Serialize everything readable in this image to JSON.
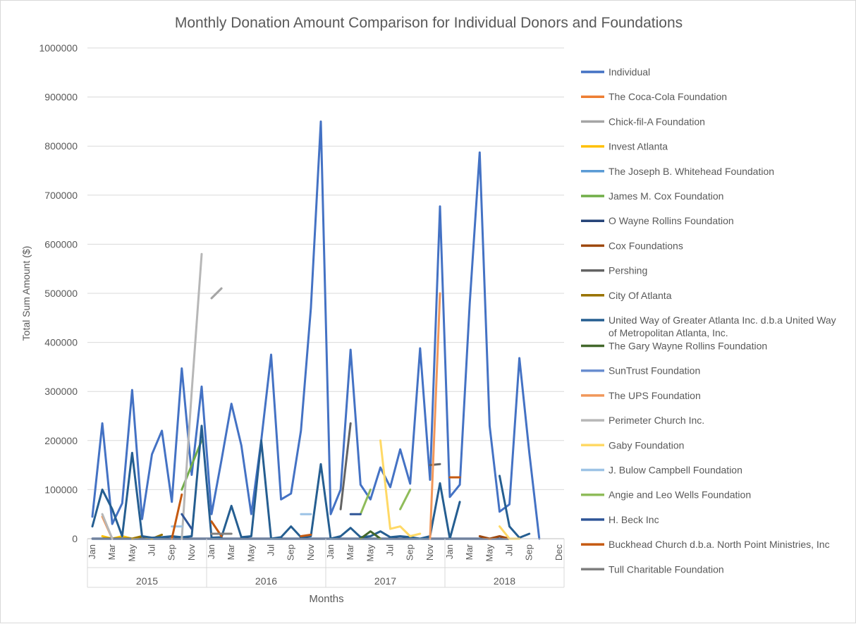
{
  "chart_data": {
    "type": "line",
    "title": "Monthly Donation Amount Comparison for Individual Donors and Foundations",
    "xlabel": "Months",
    "ylabel": "Total Sum Amount ($)",
    "ylim": [
      0,
      1000000
    ],
    "y_ticks": [
      "0",
      "100000",
      "200000",
      "300000",
      "400000",
      "500000",
      "600000",
      "700000",
      "800000",
      "900000",
      "1000000"
    ],
    "years": [
      "2015",
      "2016",
      "2017",
      "2018"
    ],
    "month_labels": [
      "Jan",
      "Mar",
      "May",
      "Jul",
      "Sep",
      "Nov",
      "Jan",
      "Mar",
      "May",
      "Jul",
      "Sep",
      "Nov",
      "Jan",
      "Mar",
      "May",
      "Jul",
      "Sep",
      "Nov",
      "Jan",
      "Mar",
      "May",
      "Jul",
      "Sep",
      "Dec"
    ],
    "legend_position": "right",
    "grid": true,
    "series": [
      {
        "name": "Individual",
        "color": "#4472C4",
        "values": [
          45000,
          235000,
          30000,
          72000,
          303000,
          40000,
          172000,
          220000,
          75000,
          347000,
          130000,
          310000,
          50000,
          160000,
          275000,
          190000,
          50000,
          200000,
          375000,
          80000,
          92000,
          220000,
          470000,
          850000,
          50000,
          100000,
          385000,
          110000,
          80000,
          145000,
          105000,
          182000,
          112000,
          388000,
          120000,
          677000,
          85000,
          110000,
          480000,
          787000,
          230000,
          55000,
          70000,
          368000,
          175000,
          0,
          null,
          null
        ]
      },
      {
        "name": "The Coca-Cola Foundation",
        "color": "#ED7D31",
        "values": [
          null,
          null,
          null,
          null,
          null,
          null,
          null,
          null,
          null,
          null,
          null,
          null,
          null,
          null,
          null,
          null,
          null,
          null,
          null,
          null,
          null,
          null,
          null,
          null,
          null,
          null,
          null,
          null,
          null,
          null,
          null,
          null,
          null,
          null,
          null,
          null,
          null,
          null,
          null,
          null,
          null,
          null,
          null,
          null,
          null,
          null,
          null,
          null
        ]
      },
      {
        "name": "Chick-fil-A Foundation",
        "color": "#A5A5A5",
        "values": [
          null,
          null,
          null,
          null,
          null,
          null,
          null,
          null,
          null,
          null,
          null,
          null,
          490000,
          510000,
          null,
          null,
          null,
          null,
          null,
          null,
          null,
          null,
          null,
          null,
          null,
          null,
          null,
          null,
          null,
          null,
          null,
          null,
          null,
          null,
          null,
          null,
          null,
          null,
          null,
          null,
          null,
          null,
          null,
          null,
          null,
          null,
          null,
          null
        ]
      },
      {
        "name": "Invest Atlanta",
        "color": "#FFC000",
        "values": [
          null,
          5000,
          0,
          5000,
          0,
          5000,
          null,
          null,
          null,
          null,
          null,
          null,
          null,
          null,
          null,
          null,
          null,
          null,
          null,
          null,
          null,
          null,
          null,
          null,
          null,
          null,
          null,
          null,
          null,
          null,
          null,
          null,
          null,
          null,
          null,
          null,
          null,
          null,
          null,
          null,
          null,
          null,
          null,
          null,
          null,
          null,
          null,
          null
        ]
      },
      {
        "name": "The Joseph B. Whitehead Foundation",
        "color": "#5B9BD5",
        "values": [
          null,
          null,
          null,
          null,
          null,
          null,
          null,
          null,
          null,
          null,
          null,
          null,
          null,
          null,
          null,
          null,
          null,
          null,
          null,
          null,
          null,
          null,
          null,
          null,
          null,
          null,
          null,
          null,
          null,
          null,
          null,
          null,
          null,
          null,
          null,
          null,
          null,
          null,
          null,
          null,
          null,
          null,
          null,
          null,
          null,
          null,
          null,
          null
        ]
      },
      {
        "name": "James M. Cox Foundation",
        "color": "#70AD47",
        "values": [
          null,
          null,
          null,
          null,
          null,
          null,
          null,
          null,
          null,
          100000,
          150000,
          200000,
          null,
          null,
          null,
          null,
          null,
          null,
          null,
          null,
          null,
          null,
          null,
          null,
          null,
          null,
          null,
          null,
          null,
          null,
          null,
          null,
          null,
          null,
          null,
          null,
          null,
          null,
          null,
          null,
          null,
          null,
          null,
          null,
          null,
          null,
          null,
          null
        ]
      },
      {
        "name": "O Wayne Rollins Foundation",
        "color": "#264478",
        "values": [
          0,
          0,
          0,
          0,
          0,
          0,
          0,
          0,
          0,
          0,
          0,
          0,
          0,
          0,
          0,
          0,
          0,
          0,
          0,
          0,
          0,
          0,
          0,
          0,
          0,
          0,
          0,
          0,
          0,
          0,
          0,
          0,
          0,
          0,
          0,
          0,
          0,
          0,
          0,
          0,
          0,
          0,
          0,
          null,
          null,
          null,
          null,
          null
        ]
      },
      {
        "name": "Cox Foundations",
        "color": "#9E480E",
        "values": [
          null,
          null,
          null,
          null,
          null,
          null,
          null,
          null,
          null,
          null,
          null,
          null,
          null,
          null,
          null,
          null,
          null,
          null,
          null,
          null,
          null,
          null,
          null,
          null,
          null,
          null,
          null,
          null,
          null,
          null,
          null,
          null,
          null,
          null,
          null,
          null,
          null,
          null,
          null,
          5000,
          0,
          5000,
          0,
          null,
          null,
          null,
          null,
          null
        ]
      },
      {
        "name": "Pershing",
        "color": "#636363",
        "values": [
          null,
          null,
          null,
          null,
          null,
          null,
          null,
          null,
          null,
          null,
          null,
          null,
          null,
          null,
          null,
          null,
          null,
          null,
          null,
          null,
          null,
          null,
          null,
          null,
          null,
          60000,
          235000,
          null,
          null,
          null,
          null,
          null,
          null,
          null,
          150000,
          152000,
          null,
          null,
          null,
          null,
          null,
          null,
          null,
          null,
          null,
          null,
          null,
          null
        ]
      },
      {
        "name": "City Of Atlanta",
        "color": "#997300",
        "values": [
          null,
          null,
          null,
          null,
          0,
          5000,
          0,
          8000,
          null,
          null,
          null,
          null,
          null,
          null,
          null,
          null,
          null,
          null,
          null,
          null,
          null,
          null,
          null,
          null,
          null,
          null,
          null,
          null,
          null,
          null,
          null,
          null,
          null,
          null,
          null,
          null,
          null,
          null,
          null,
          null,
          null,
          null,
          null,
          null,
          null,
          null,
          null,
          null
        ]
      },
      {
        "name": "United Way of Greater Atlanta Inc. d.b.a United Way of Metropolitan Atlanta, Inc.",
        "color": "#255E91",
        "values": [
          25000,
          100000,
          60000,
          5000,
          175000,
          5000,
          2000,
          3000,
          5000,
          3000,
          5000,
          230000,
          2000,
          3000,
          67000,
          3000,
          5000,
          200000,
          0,
          3000,
          25000,
          3000,
          5000,
          152000,
          0,
          5000,
          22000,
          3000,
          5000,
          15000,
          3000,
          5000,
          3000,
          0,
          5000,
          113000,
          0,
          75000,
          null,
          null,
          null,
          128000,
          25000,
          2000,
          10000,
          null,
          null,
          null
        ]
      },
      {
        "name": "The Gary Wayne Rollins Foundation",
        "color": "#43682B",
        "values": [
          null,
          null,
          null,
          null,
          null,
          null,
          null,
          null,
          null,
          null,
          null,
          null,
          null,
          null,
          null,
          null,
          null,
          null,
          null,
          null,
          null,
          null,
          null,
          null,
          null,
          null,
          null,
          0,
          15000,
          0,
          null,
          null,
          null,
          null,
          null,
          null,
          null,
          null,
          null,
          null,
          null,
          null,
          null,
          null,
          null,
          null,
          null,
          null
        ]
      },
      {
        "name": "SunTrust Foundation",
        "color": "#698ED0",
        "values": [
          null,
          null,
          null,
          null,
          null,
          null,
          null,
          null,
          null,
          null,
          null,
          null,
          null,
          null,
          null,
          null,
          null,
          null,
          null,
          null,
          null,
          null,
          null,
          null,
          null,
          null,
          null,
          null,
          null,
          null,
          null,
          null,
          null,
          null,
          null,
          null,
          null,
          null,
          null,
          null,
          null,
          null,
          null,
          null,
          null,
          null,
          null,
          null
        ]
      },
      {
        "name": "The UPS Foundation",
        "color": "#F1975A",
        "values": [
          null,
          45000,
          0,
          null,
          null,
          null,
          null,
          null,
          null,
          null,
          null,
          null,
          null,
          null,
          null,
          null,
          null,
          null,
          null,
          null,
          null,
          null,
          null,
          null,
          null,
          null,
          null,
          null,
          null,
          null,
          null,
          null,
          null,
          null,
          0,
          500000,
          null,
          null,
          null,
          null,
          null,
          null,
          null,
          null,
          null,
          null,
          null,
          null
        ]
      },
      {
        "name": "Perimeter Church Inc.",
        "color": "#B7B7B7",
        "values": [
          null,
          50000,
          0,
          null,
          null,
          null,
          null,
          null,
          null,
          0,
          300000,
          580000,
          null,
          null,
          null,
          null,
          null,
          null,
          null,
          null,
          null,
          null,
          null,
          null,
          null,
          null,
          null,
          null,
          null,
          null,
          null,
          null,
          null,
          null,
          null,
          null,
          null,
          null,
          null,
          null,
          null,
          null,
          null,
          null,
          null,
          null,
          null,
          null
        ]
      },
      {
        "name": "Gaby Foundation",
        "color": "#FFD966",
        "values": [
          null,
          null,
          null,
          null,
          null,
          null,
          null,
          null,
          null,
          null,
          null,
          null,
          null,
          null,
          null,
          null,
          null,
          null,
          null,
          null,
          null,
          null,
          null,
          null,
          null,
          null,
          null,
          null,
          null,
          200000,
          20000,
          25000,
          5000,
          10000,
          null,
          null,
          null,
          25000,
          null,
          null,
          null,
          25000,
          0,
          0,
          null,
          null,
          null,
          null
        ]
      },
      {
        "name": "J. Bulow Campbell Foundation",
        "color": "#9DC3E6",
        "values": [
          null,
          null,
          null,
          null,
          null,
          null,
          null,
          null,
          25000,
          25000,
          null,
          null,
          null,
          null,
          null,
          null,
          null,
          null,
          null,
          null,
          null,
          50000,
          50000,
          null,
          null,
          null,
          null,
          null,
          null,
          null,
          null,
          null,
          null,
          null,
          null,
          null,
          null,
          null,
          null,
          null,
          null,
          null,
          null,
          null,
          null,
          null,
          null,
          null
        ]
      },
      {
        "name": "Angie and Leo Wells Foundation",
        "color": "#8FBC5A",
        "values": [
          null,
          null,
          null,
          null,
          null,
          null,
          null,
          null,
          null,
          null,
          null,
          null,
          null,
          null,
          null,
          null,
          null,
          null,
          null,
          null,
          null,
          null,
          null,
          null,
          null,
          null,
          null,
          50000,
          100000,
          null,
          null,
          60000,
          100000,
          null,
          null,
          null,
          null,
          null,
          null,
          null,
          null,
          null,
          null,
          null,
          null,
          null,
          null,
          null
        ]
      },
      {
        "name": "H. Beck Inc",
        "color": "#2F5597",
        "values": [
          null,
          null,
          null,
          null,
          null,
          null,
          null,
          null,
          null,
          50000,
          20000,
          null,
          null,
          null,
          null,
          null,
          null,
          null,
          null,
          null,
          null,
          null,
          null,
          null,
          null,
          null,
          50000,
          50000,
          null,
          null,
          null,
          null,
          null,
          null,
          null,
          null,
          null,
          null,
          null,
          null,
          null,
          null,
          null,
          null,
          null,
          null,
          null,
          null
        ]
      },
      {
        "name": "Buckhead Church d.b.a. North Point Ministries, Inc",
        "color": "#C55A11",
        "values": [
          null,
          null,
          null,
          null,
          null,
          null,
          null,
          null,
          0,
          90000,
          null,
          null,
          35000,
          5000,
          null,
          null,
          null,
          null,
          null,
          null,
          null,
          5000,
          8000,
          null,
          null,
          null,
          null,
          null,
          null,
          null,
          null,
          null,
          null,
          null,
          null,
          null,
          125000,
          125000,
          null,
          null,
          null,
          null,
          null,
          null,
          null,
          null,
          null,
          null
        ]
      },
      {
        "name": "Tull Charitable Foundation",
        "color": "#7F7F7F",
        "values": [
          null,
          null,
          null,
          null,
          null,
          null,
          null,
          null,
          null,
          null,
          null,
          null,
          10000,
          10000,
          10000,
          null,
          null,
          null,
          null,
          null,
          null,
          null,
          null,
          null,
          null,
          null,
          null,
          null,
          null,
          null,
          null,
          null,
          null,
          null,
          null,
          null,
          null,
          null,
          null,
          null,
          null,
          null,
          null,
          null,
          null,
          null,
          null,
          null
        ]
      }
    ]
  }
}
